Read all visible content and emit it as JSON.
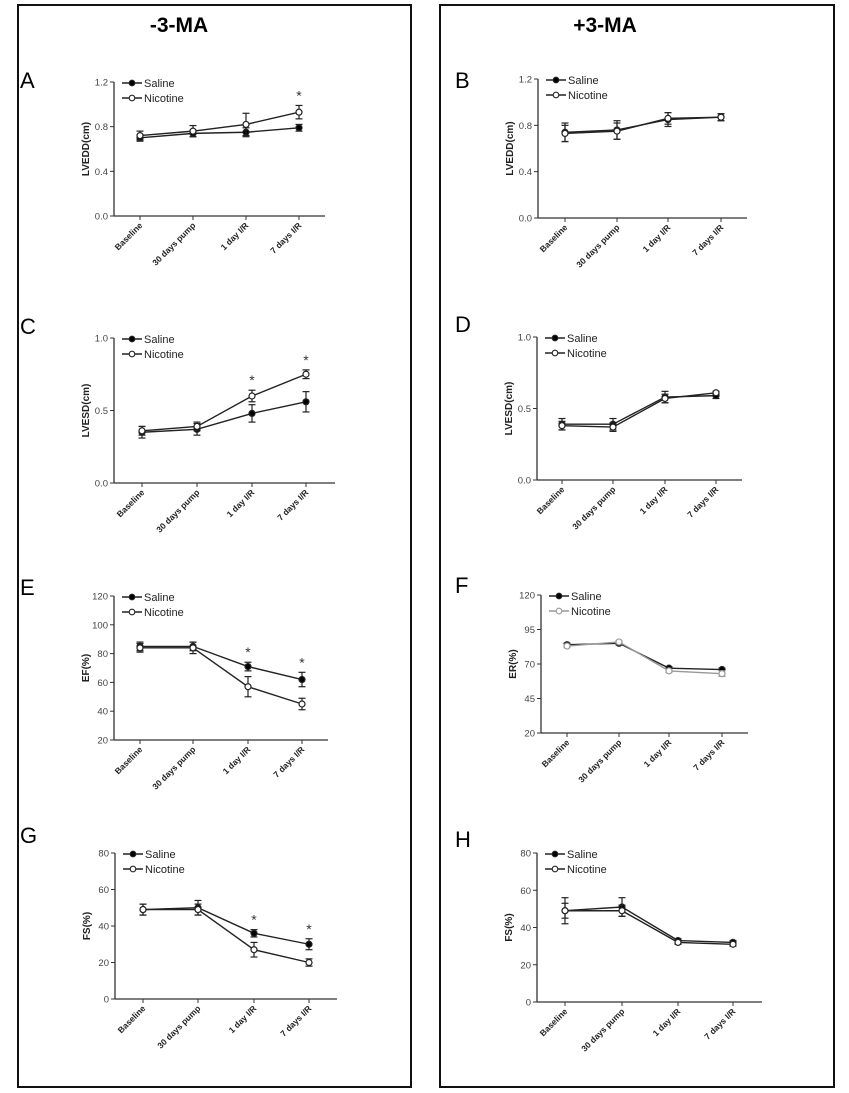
{
  "columns": [
    {
      "title": "-3-MA"
    },
    {
      "title": "+3-MA"
    }
  ],
  "colors": {
    "saline": "#000000",
    "nicotine_marker": "#ffffff",
    "line": "#222222",
    "nicotine_F": "#999999"
  },
  "chart_data": [
    {
      "panel": "A",
      "type": "line",
      "ylabel": "LVEDD(cm)",
      "ylim": [
        0,
        1.2
      ],
      "yticks": [
        "0.0",
        "0.4",
        "0.8",
        "1.2"
      ],
      "ytick_values": [
        0,
        0.4,
        0.8,
        1.2
      ],
      "categories": [
        "Baseline",
        "30 days pump",
        "1 day I/R",
        "7 days I/R"
      ],
      "series": [
        {
          "name": "Saline",
          "values": [
            0.7,
            0.74,
            0.75,
            0.79
          ],
          "errors": [
            0.03,
            0.03,
            0.04,
            0.03
          ]
        },
        {
          "name": "Nicotine",
          "values": [
            0.72,
            0.76,
            0.82,
            0.93
          ],
          "errors": [
            0.04,
            0.05,
            0.1,
            0.06
          ]
        }
      ],
      "significance": [
        "",
        "",
        "",
        "*"
      ],
      "legend": "top-left"
    },
    {
      "panel": "B",
      "type": "line",
      "ylabel": "LVEDD(cm)",
      "ylim": [
        0,
        1.2
      ],
      "yticks": [
        "0.0",
        "0.4",
        "0.8",
        "1.2"
      ],
      "ytick_values": [
        0,
        0.4,
        0.8,
        1.2
      ],
      "categories": [
        "Baseline",
        "30 days pump",
        "1 day I/R",
        "7 days I/R"
      ],
      "series": [
        {
          "name": "Saline",
          "values": [
            0.74,
            0.76,
            0.85,
            0.87
          ],
          "errors": [
            0.08,
            0.08,
            0.06,
            0.03
          ]
        },
        {
          "name": "Nicotine",
          "values": [
            0.73,
            0.75,
            0.86,
            0.87
          ],
          "errors": [
            0.07,
            0.07,
            0.05,
            0.03
          ]
        }
      ],
      "significance": [
        "",
        "",
        "",
        ""
      ],
      "legend": "top-left"
    },
    {
      "panel": "C",
      "type": "line",
      "ylabel": "LVESD(cm)",
      "ylim": [
        0,
        1.0
      ],
      "yticks": [
        "0.0",
        "0.5",
        "1.0"
      ],
      "ytick_values": [
        0,
        0.5,
        1.0
      ],
      "categories": [
        "Baseline",
        "30 days pump",
        "1 day I/R",
        "7 days I/R"
      ],
      "series": [
        {
          "name": "Saline",
          "values": [
            0.35,
            0.37,
            0.48,
            0.56
          ],
          "errors": [
            0.04,
            0.04,
            0.06,
            0.07
          ]
        },
        {
          "name": "Nicotine",
          "values": [
            0.36,
            0.39,
            0.6,
            0.75
          ],
          "errors": [
            0.03,
            0.03,
            0.04,
            0.03
          ]
        }
      ],
      "significance": [
        "",
        "",
        "*",
        "*"
      ],
      "legend": "top-left"
    },
    {
      "panel": "D",
      "type": "line",
      "ylabel": "LVESD(cm)",
      "ylim": [
        0,
        1.0
      ],
      "yticks": [
        "0.0",
        "0.5",
        "1.0"
      ],
      "ytick_values": [
        0,
        0.5,
        1.0
      ],
      "categories": [
        "Baseline",
        "30 days pump",
        "1 day I/R",
        "7 days I/R"
      ],
      "series": [
        {
          "name": "Saline",
          "values": [
            0.39,
            0.39,
            0.58,
            0.59
          ],
          "errors": [
            0.04,
            0.04,
            0.04,
            0.02
          ]
        },
        {
          "name": "Nicotine",
          "values": [
            0.38,
            0.37,
            0.57,
            0.61
          ],
          "errors": [
            0.03,
            0.03,
            0.03,
            0.01
          ]
        }
      ],
      "significance": [
        "",
        "",
        "",
        ""
      ],
      "legend": "top-left"
    },
    {
      "panel": "E",
      "type": "line",
      "ylabel": "EF(%)",
      "ylim": [
        20,
        120
      ],
      "yticks": [
        "20",
        "40",
        "60",
        "80",
        "100",
        "120"
      ],
      "ytick_values": [
        20,
        40,
        60,
        80,
        100,
        120
      ],
      "categories": [
        "Baseline",
        "30 days pump",
        "1 day I/R",
        "7 days I/R"
      ],
      "series": [
        {
          "name": "Saline",
          "values": [
            85,
            85,
            71,
            62
          ],
          "errors": [
            3,
            3,
            3,
            5
          ]
        },
        {
          "name": "Nicotine",
          "values": [
            84,
            84,
            57,
            45
          ],
          "errors": [
            3,
            4,
            7,
            4
          ]
        }
      ],
      "significance": [
        "",
        "",
        "*",
        "*"
      ],
      "legend": "top-left"
    },
    {
      "panel": "F",
      "type": "line",
      "ylabel": "ER(%)",
      "ylim": [
        20,
        120
      ],
      "yticks": [
        "20",
        "45",
        "70",
        "95",
        "120"
      ],
      "ytick_values": [
        20,
        45,
        70,
        95,
        120
      ],
      "categories": [
        "Baseline",
        "30 days pump",
        "1 day I/R",
        "7 days I/R"
      ],
      "series": [
        {
          "name": "Saline",
          "values": [
            84,
            85,
            67,
            66
          ],
          "errors": [
            1,
            1,
            1,
            1
          ]
        },
        {
          "name": "Nicotine",
          "values": [
            83,
            86,
            65,
            63
          ],
          "errors": [
            1,
            1,
            1,
            2
          ]
        }
      ],
      "significance": [
        "",
        "",
        "",
        ""
      ],
      "legend": "top-left"
    },
    {
      "panel": "G",
      "type": "line",
      "ylabel": "FS(%)",
      "ylim": [
        0,
        80
      ],
      "yticks": [
        "0",
        "20",
        "40",
        "60",
        "80"
      ],
      "ytick_values": [
        0,
        20,
        40,
        60,
        80
      ],
      "categories": [
        "Baseline",
        "30 days pump",
        "1 day I/R",
        "7 days I/R"
      ],
      "series": [
        {
          "name": "Saline",
          "values": [
            49,
            50,
            36,
            30
          ],
          "errors": [
            3,
            4,
            2,
            3
          ]
        },
        {
          "name": "Nicotine",
          "values": [
            49,
            49,
            27,
            20
          ],
          "errors": [
            3,
            3,
            4,
            2
          ]
        }
      ],
      "significance": [
        "",
        "",
        "*",
        "*"
      ],
      "legend": "top-left"
    },
    {
      "panel": "H",
      "type": "line",
      "ylabel": "FS(%)",
      "ylim": [
        0,
        80
      ],
      "yticks": [
        "0",
        "20",
        "40",
        "60",
        "80"
      ],
      "ytick_values": [
        0,
        20,
        40,
        60,
        80
      ],
      "categories": [
        "Baseline",
        "30 days pump",
        "1 day I/R",
        "7 days I/R"
      ],
      "series": [
        {
          "name": "Saline",
          "values": [
            49,
            51,
            33,
            32
          ],
          "errors": [
            7,
            5,
            1,
            1
          ]
        },
        {
          "name": "Nicotine",
          "values": [
            49,
            49,
            32,
            31
          ],
          "errors": [
            4,
            3,
            1,
            1
          ]
        }
      ],
      "significance": [
        "",
        "",
        "",
        ""
      ],
      "legend": "top-left"
    }
  ]
}
